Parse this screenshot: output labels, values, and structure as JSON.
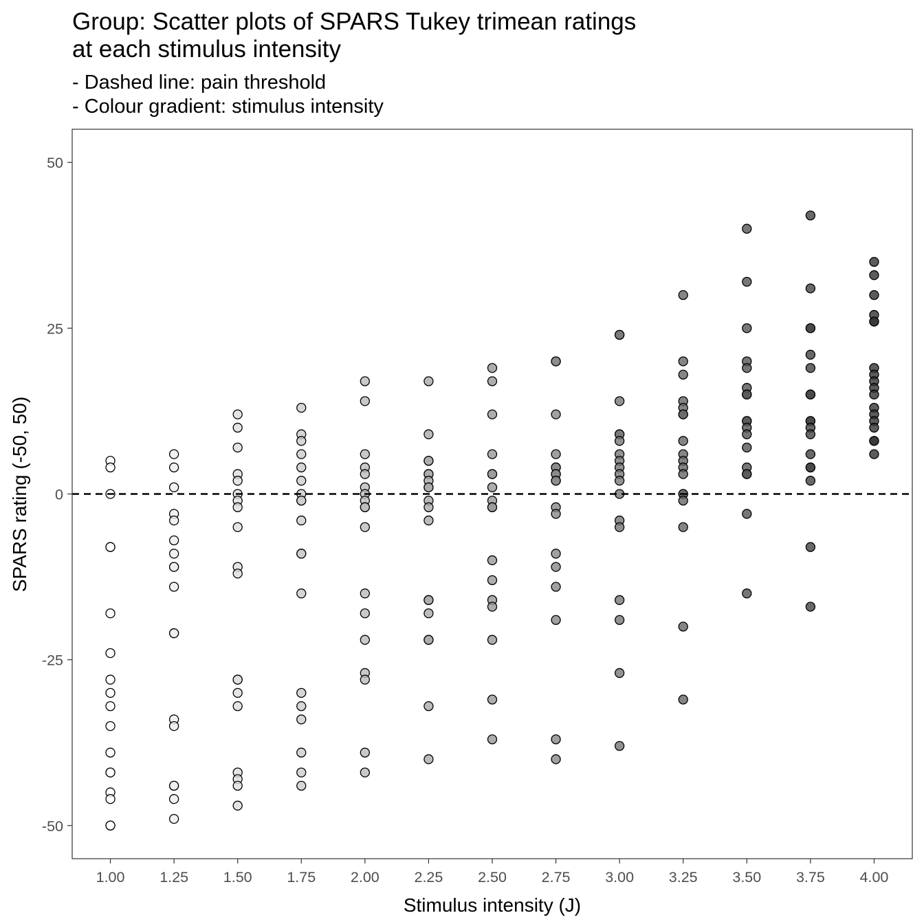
{
  "chart_data": {
    "type": "scatter",
    "title_line1": "Group: Scatter plots of SPARS Tukey trimean ratings",
    "title_line2": "at each stimulus intensity",
    "subtitle_line1": "- Dashed line: pain threshold",
    "subtitle_line2": "- Colour gradient: stimulus intensity",
    "xlabel": "Stimulus intensity (J)",
    "ylabel": "SPARS rating (-50, 50)",
    "xlim": [
      0.85,
      4.15
    ],
    "ylim": [
      -55,
      55
    ],
    "x_ticks": [
      1.0,
      1.25,
      1.5,
      1.75,
      2.0,
      2.25,
      2.5,
      2.75,
      3.0,
      3.25,
      3.5,
      3.75,
      4.0
    ],
    "x_tick_labels": [
      "1.00",
      "1.25",
      "1.50",
      "1.75",
      "2.00",
      "2.25",
      "2.50",
      "2.75",
      "3.00",
      "3.25",
      "3.50",
      "3.75",
      "4.00"
    ],
    "y_ticks": [
      -50,
      -25,
      0,
      25,
      50
    ],
    "y_tick_labels": [
      "-50",
      "-25",
      "0",
      "25",
      "50"
    ],
    "reference_line": {
      "y": 0,
      "style": "dashed"
    },
    "grid": false,
    "legend": "none",
    "colour_gradient": {
      "low": "#ffffff",
      "high": "#333333",
      "point_opacity": 0.8,
      "stroke": "#000000"
    },
    "series": [
      {
        "x": 1.0,
        "y": [
          5,
          4,
          0,
          -8,
          -8,
          -18,
          -24,
          -28,
          -30,
          -32,
          -35,
          -39,
          -42,
          -42,
          -45,
          -46,
          -50,
          -50
        ]
      },
      {
        "x": 1.25,
        "y": [
          6,
          4,
          1,
          -3,
          -4,
          -7,
          -9,
          -11,
          -11,
          -14,
          -21,
          -21,
          -34,
          -35,
          -44,
          -44,
          -46,
          -49
        ]
      },
      {
        "x": 1.5,
        "y": [
          12,
          10,
          7,
          3,
          2,
          0,
          -1,
          -2,
          -5,
          -11,
          -12,
          -28,
          -28,
          -30,
          -32,
          -42,
          -43,
          -44,
          -47
        ]
      },
      {
        "x": 1.75,
        "y": [
          13,
          9,
          8,
          6,
          4,
          2,
          0,
          -1,
          -1,
          -4,
          -9,
          -9,
          -15,
          -30,
          -32,
          -34,
          -39,
          -42,
          -44
        ]
      },
      {
        "x": 2.0,
        "y": [
          17,
          14,
          6,
          4,
          3,
          1,
          0,
          -1,
          -2,
          -2,
          -5,
          -15,
          -18,
          -22,
          -27,
          -28,
          -39,
          -42
        ]
      },
      {
        "x": 2.25,
        "y": [
          17,
          9,
          5,
          5,
          3,
          3,
          2,
          1,
          1,
          -1,
          -2,
          -4,
          -16,
          -16,
          -18,
          -22,
          -22,
          -32,
          -40
        ]
      },
      {
        "x": 2.5,
        "y": [
          19,
          17,
          12,
          6,
          3,
          3,
          1,
          -1,
          -2,
          -2,
          -10,
          -13,
          -16,
          -17,
          -22,
          -31,
          -37
        ]
      },
      {
        "x": 2.75,
        "y": [
          20,
          20,
          12,
          6,
          4,
          4,
          3,
          3,
          2,
          2,
          -2,
          -3,
          -9,
          -11,
          -14,
          -19,
          -37,
          -40
        ]
      },
      {
        "x": 3.0,
        "y": [
          24,
          24,
          14,
          9,
          9,
          8,
          6,
          5,
          4,
          3,
          2,
          0,
          -4,
          -5,
          -16,
          -19,
          -27,
          -38
        ]
      },
      {
        "x": 3.25,
        "y": [
          30,
          20,
          18,
          14,
          13,
          12,
          12,
          8,
          6,
          5,
          4,
          3,
          0,
          0,
          -1,
          -5,
          -20,
          -31
        ]
      },
      {
        "x": 3.5,
        "y": [
          40,
          32,
          25,
          20,
          19,
          16,
          15,
          15,
          11,
          11,
          10,
          9,
          7,
          4,
          3,
          3,
          -3,
          -15
        ]
      },
      {
        "x": 3.75,
        "y": [
          42,
          31,
          25,
          25,
          21,
          19,
          15,
          15,
          11,
          11,
          10,
          9,
          6,
          4,
          4,
          2,
          -8,
          -17
        ]
      },
      {
        "x": 4.0,
        "y": [
          35,
          33,
          30,
          27,
          26,
          26,
          19,
          18,
          17,
          16,
          15,
          13,
          12,
          11,
          10,
          8,
          8,
          6
        ]
      }
    ]
  }
}
